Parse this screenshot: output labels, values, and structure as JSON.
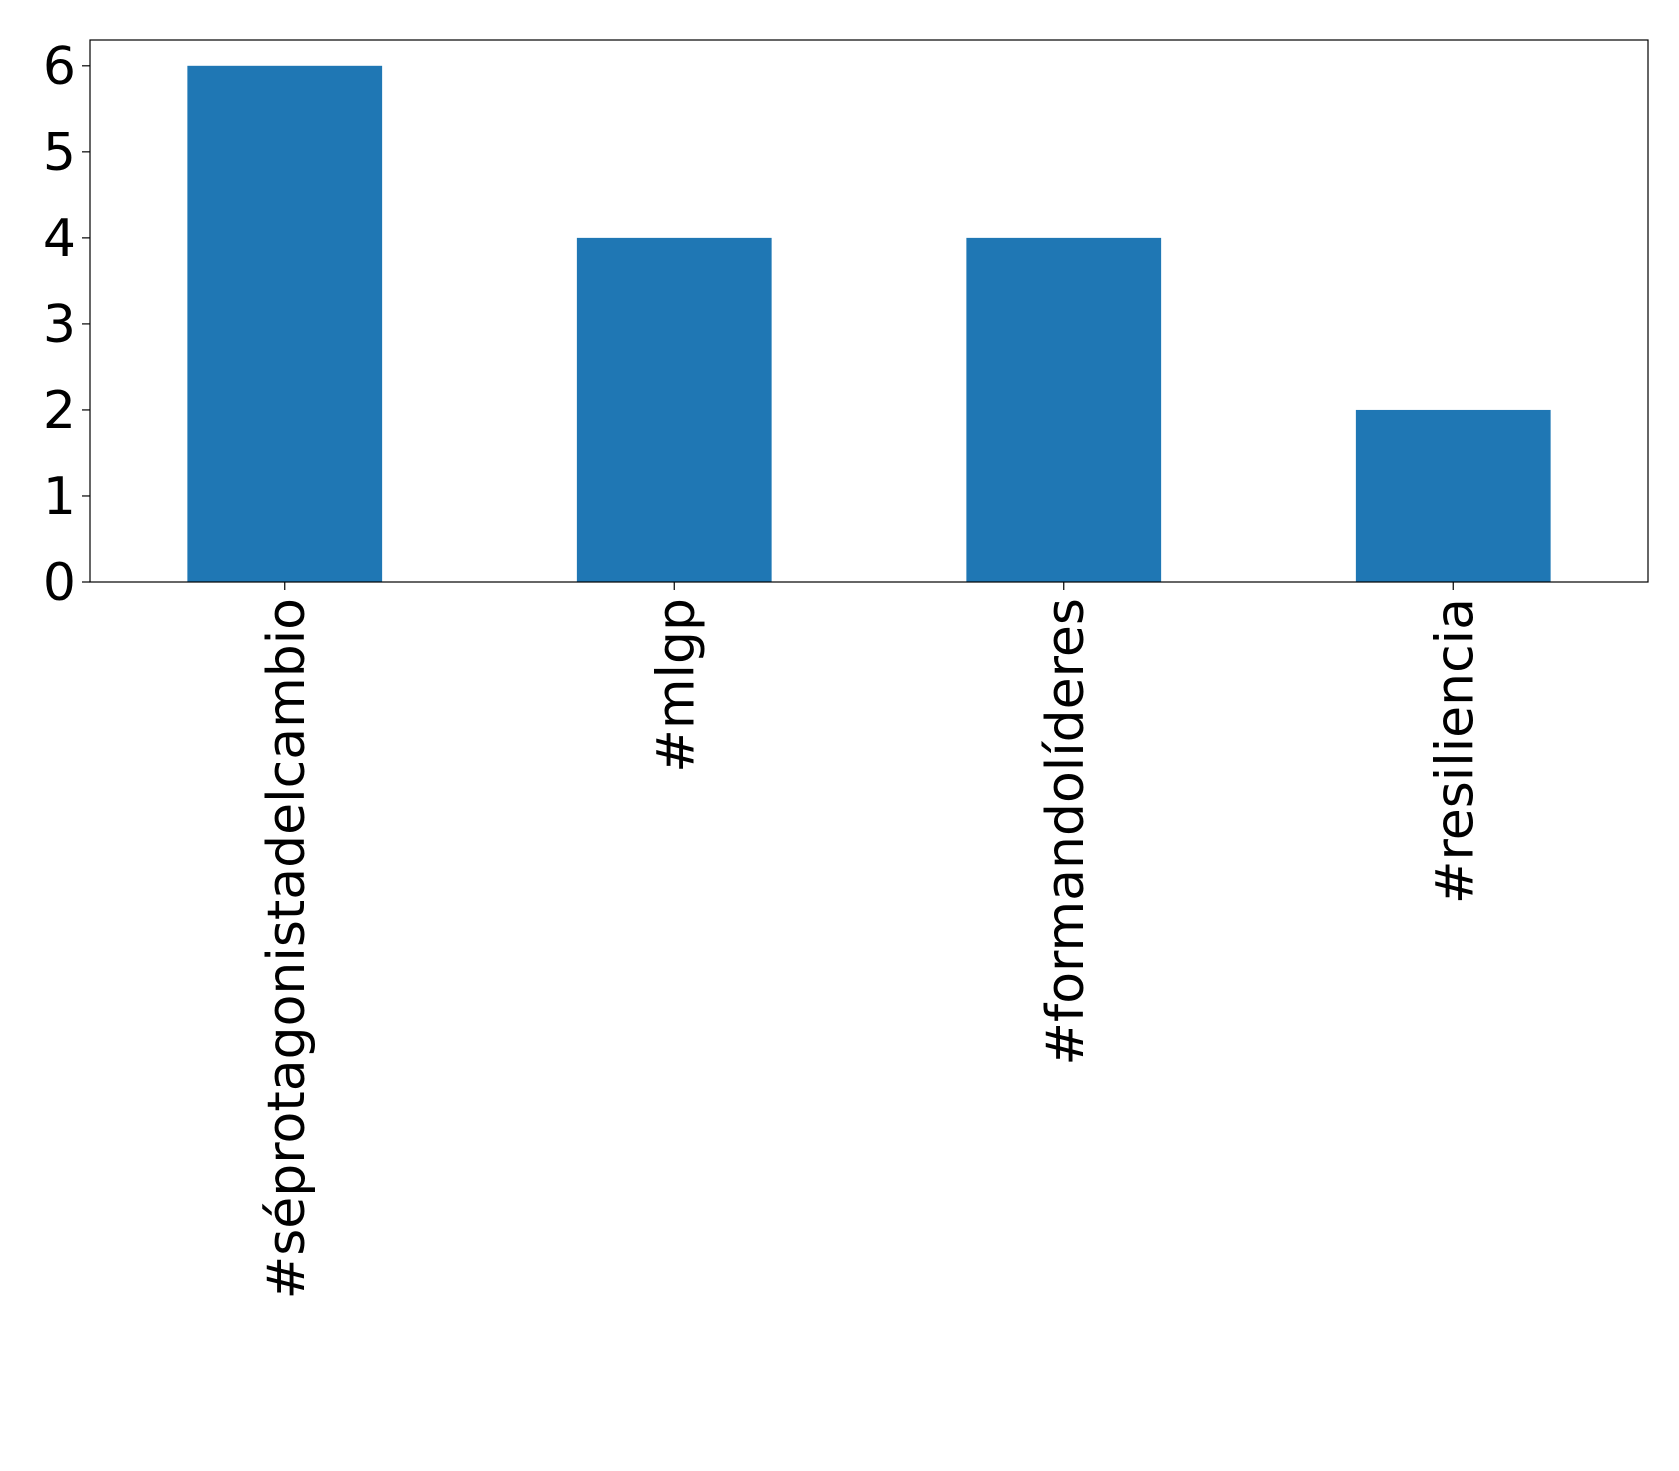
{
  "chart_data": {
    "type": "bar",
    "categories": [
      "#séprotagonistadelcambio",
      "#mlgp",
      "#formandolíderes",
      "#resiliencia"
    ],
    "values": [
      6,
      4,
      4,
      2
    ],
    "color": "#1f77b4",
    "ylim": [
      0,
      6.3
    ],
    "yticks": [
      0,
      1,
      2,
      3,
      4,
      5,
      6
    ],
    "grid": false
  }
}
